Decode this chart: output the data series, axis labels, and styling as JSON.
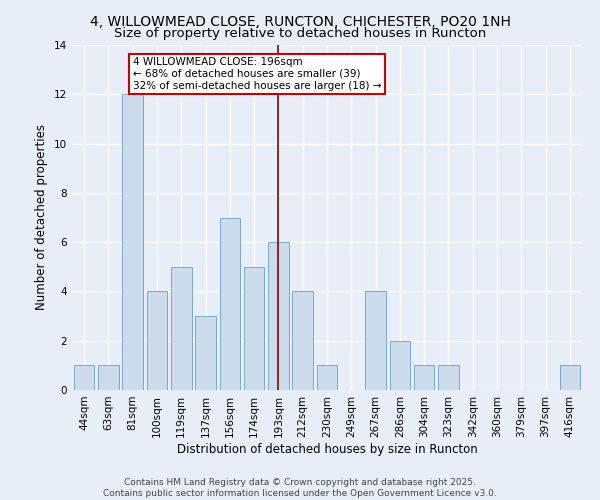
{
  "title": "4, WILLOWMEAD CLOSE, RUNCTON, CHICHESTER, PO20 1NH",
  "subtitle": "Size of property relative to detached houses in Runcton",
  "xlabel": "Distribution of detached houses by size in Runcton",
  "ylabel": "Number of detached properties",
  "categories": [
    "44sqm",
    "63sqm",
    "81sqm",
    "100sqm",
    "119sqm",
    "137sqm",
    "156sqm",
    "174sqm",
    "193sqm",
    "212sqm",
    "230sqm",
    "249sqm",
    "267sqm",
    "286sqm",
    "304sqm",
    "323sqm",
    "342sqm",
    "360sqm",
    "379sqm",
    "397sqm",
    "416sqm"
  ],
  "values": [
    1,
    1,
    12,
    4,
    5,
    3,
    7,
    5,
    6,
    4,
    1,
    0,
    4,
    2,
    1,
    1,
    0,
    0,
    0,
    0,
    1
  ],
  "bar_color": "#ccdcec",
  "bar_edge_color": "#7aaac8",
  "vline_x_index": 8,
  "vline_color": "#8b0000",
  "annotation_line1": "4 WILLOWMEAD CLOSE: 196sqm",
  "annotation_line2": "← 68% of detached houses are smaller (39)",
  "annotation_line3": "32% of semi-detached houses are larger (18) →",
  "annotation_box_facecolor": "#ffffff",
  "annotation_box_edgecolor": "#cc0000",
  "ylim": [
    0,
    14
  ],
  "yticks": [
    0,
    2,
    4,
    6,
    8,
    10,
    12,
    14
  ],
  "bg_color": "#e8eef8",
  "grid_color": "#ffffff",
  "title_fontsize": 10,
  "subtitle_fontsize": 9.5,
  "label_fontsize": 8.5,
  "tick_fontsize": 7.5,
  "annot_fontsize": 7.5,
  "footer_fontsize": 6.5,
  "footer": "Contains HM Land Registry data © Crown copyright and database right 2025.\nContains public sector information licensed under the Open Government Licence v3.0."
}
